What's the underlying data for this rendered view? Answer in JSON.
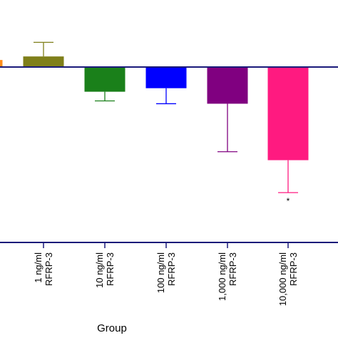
{
  "chart_data": {
    "type": "bar",
    "xlabel": "Group",
    "ylabel": "",
    "categories": [
      {
        "line1": "",
        "line2": ""
      },
      {
        "line1": "1 ng/ml",
        "line2": "RFRP-3"
      },
      {
        "line1": "10 ng/ml",
        "line2": "RFRP-3"
      },
      {
        "line1": "100 ng/ml",
        "line2": "RFRP-3"
      },
      {
        "line1": "1,000 ng/ml",
        "line2": "RFRP-3"
      },
      {
        "line1": "10,000 ng/ml",
        "line2": "RFRP-3"
      }
    ],
    "values": [
      0.1,
      0.15,
      -0.35,
      -0.3,
      -0.52,
      -1.32
    ],
    "errors": [
      0.0,
      0.2,
      0.13,
      0.22,
      0.68,
      0.46
    ],
    "colors": [
      "#ff8c1a",
      "#7f7f1a",
      "#1a801a",
      "#0000ff",
      "#800080",
      "#ff1a80"
    ],
    "annotations": [
      "",
      "",
      "",
      "",
      "",
      "*"
    ],
    "ylim": [
      -2.45,
      0.95
    ]
  }
}
